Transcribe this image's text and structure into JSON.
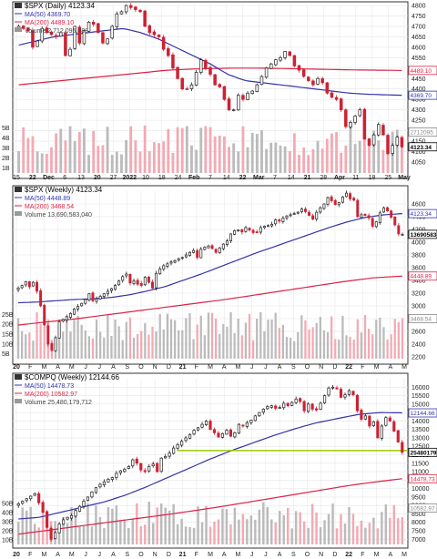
{
  "colors": {
    "up": "#222222",
    "down": "#cc2233",
    "ma50": "#3333aa",
    "ma200": "#dd2244",
    "support": "#99cc00",
    "vol": "#bbbbbb",
    "volDown": "#f2aab4",
    "frame": "#333333",
    "grid": "#e4e4e4"
  },
  "chart_data": [
    {
      "type": "line",
      "title_line": "$SPX (Daily) 4123.34",
      "legend": [
        {
          "label": "MA(50) 4369.70",
          "color": "#3333aa"
        },
        {
          "label": "MA(200) 4489.10",
          "color": "#dd2244"
        },
        {
          "label": "Volume 2,712,095,488",
          "color": "#999999"
        }
      ],
      "x_ticks": [
        "15",
        "22",
        "Dec",
        "6",
        "13",
        "20",
        "27",
        "2022",
        "10",
        "18",
        "24",
        "Feb",
        "7",
        "14",
        "22",
        "Mar",
        "7",
        "14",
        "21",
        "28",
        "Apr",
        "11",
        "18",
        "25",
        "May"
      ],
      "y_ticks": [
        "4800",
        "4750",
        "4700",
        "4650",
        "4600",
        "4550",
        "4500",
        "4450",
        "4400",
        "4350",
        "4300",
        "4250",
        "4200",
        "4150",
        "4100",
        "4050"
      ],
      "ylim": [
        4050,
        4800
      ],
      "vol_ticks": [
        "5B",
        "4B",
        "3B",
        "2B",
        "1B"
      ],
      "price_tags": [
        "4489.10",
        "4369.70",
        "2712095",
        "4123.34"
      ],
      "ohlc_close_approx": [
        4700,
        4690,
        4680,
        4600,
        4630,
        4690,
        4670,
        4660,
        4650,
        4670,
        4560,
        4590,
        4700,
        4620,
        4680,
        4720,
        4710,
        4670,
        4620,
        4640,
        4700,
        4760,
        4770,
        4800,
        4790,
        4780,
        4770,
        4700,
        4670,
        4660,
        4650,
        4590,
        4560,
        4500,
        4450,
        4400,
        4400,
        4420,
        4480,
        4540,
        4500,
        4470,
        4420,
        4410,
        4350,
        4300,
        4300,
        4370,
        4350,
        4380,
        4390,
        4420,
        4460,
        4500,
        4520,
        4540,
        4550,
        4580,
        4560,
        4510,
        4490,
        4460,
        4440,
        4420,
        4450,
        4430,
        4380,
        4360,
        4350,
        4300,
        4220,
        4240,
        4270,
        4300,
        4160,
        4130,
        4180,
        4230,
        4180,
        4090,
        4130,
        4170,
        4123
      ],
      "ma50_approx": [
        4610,
        4630,
        4650,
        4660,
        4670,
        4680,
        4690,
        4670,
        4640,
        4600,
        4560,
        4520,
        4470,
        4440,
        4430,
        4420,
        4410,
        4400,
        4390,
        4380,
        4375,
        4372,
        4370
      ],
      "ma200_approx": [
        4420,
        4430,
        4440,
        4450,
        4460,
        4470,
        4480,
        4490,
        4495,
        4498,
        4500,
        4500,
        4499,
        4497,
        4495,
        4493,
        4491,
        4490,
        4489
      ]
    },
    {
      "type": "line",
      "title_line": "$SPX (Weekly) 4123.34",
      "legend": [
        {
          "label": "MA(50) 4448.89",
          "color": "#3333aa"
        },
        {
          "label": "MA(200) 3468.54",
          "color": "#dd2244"
        },
        {
          "label": "Volume 13,690,583,040",
          "color": "#999999"
        }
      ],
      "x_ticks": [
        "20",
        "F",
        "M",
        "A",
        "M",
        "J",
        "J",
        "A",
        "S",
        "O",
        "N",
        "D",
        "21",
        "F",
        "M",
        "A",
        "M",
        "J",
        "J",
        "A",
        "S",
        "O",
        "N",
        "D",
        "22",
        "F",
        "M",
        "A",
        "M"
      ],
      "y_ticks": [
        "4600",
        "4400",
        "4200",
        "4000",
        "3800",
        "3600",
        "3400",
        "3200",
        "3000",
        "2800",
        "2600",
        "2400",
        "2200"
      ],
      "ylim": [
        2200,
        4800
      ],
      "vol_ticks": [
        "25B",
        "20B",
        "15B",
        "10B",
        "5B"
      ],
      "price_tags": [
        "4448.89",
        "4123.34",
        "3468.54",
        "13690583"
      ],
      "ohlc_close_approx": [
        3280,
        3320,
        3380,
        3300,
        3370,
        3230,
        3000,
        2700,
        2400,
        2300,
        2500,
        2750,
        2790,
        2830,
        2880,
        2950,
        2990,
        3040,
        3100,
        3190,
        3080,
        3110,
        3150,
        3190,
        3230,
        3270,
        3320,
        3390,
        3460,
        3500,
        3360,
        3390,
        3340,
        3320,
        3450,
        3370,
        3280,
        3510,
        3580,
        3630,
        3660,
        3690,
        3710,
        3740,
        3760,
        3800,
        3840,
        3870,
        3760,
        3890,
        3920,
        3940,
        3900,
        3840,
        3910,
        3970,
        4020,
        4130,
        4180,
        4190,
        4160,
        4230,
        4190,
        4150,
        4160,
        4230,
        4250,
        4260,
        4280,
        4350,
        4330,
        4380,
        4410,
        4430,
        4450,
        4470,
        4520,
        4480,
        4420,
        4360,
        4470,
        4540,
        4600,
        4700,
        4650,
        4590,
        4620,
        4710,
        4770,
        4680,
        4660,
        4400,
        4430,
        4420,
        4380,
        4250,
        4320,
        4460,
        4540,
        4490,
        4390,
        4270,
        4130,
        4123
      ],
      "ma50_approx": [
        3050,
        3060,
        3080,
        3100,
        3110,
        3130,
        3170,
        3230,
        3300,
        3400,
        3500,
        3610,
        3720,
        3830,
        3930,
        4030,
        4130,
        4230,
        4320,
        4390,
        4430,
        4448
      ],
      "ma200_approx": [
        2700,
        2750,
        2800,
        2860,
        2920,
        2980,
        3040,
        3100,
        3170,
        3240,
        3310,
        3380,
        3440,
        3468
      ]
    },
    {
      "type": "line",
      "title_line": "$COMPQ (Weekly) 12144.66",
      "legend": [
        {
          "label": "MA(50) 14478.73",
          "color": "#3333aa"
        },
        {
          "label": "MA(200) 10582.97",
          "color": "#dd2244"
        },
        {
          "label": "Volume 25,480,179,712",
          "color": "#999999"
        }
      ],
      "x_ticks": [
        "20",
        "F",
        "M",
        "A",
        "M",
        "J",
        "J",
        "A",
        "S",
        "O",
        "N",
        "D",
        "21",
        "F",
        "M",
        "A",
        "M",
        "J",
        "J",
        "A",
        "S",
        "O",
        "N",
        "D",
        "22",
        "F",
        "M",
        "A",
        "M"
      ],
      "y_ticks": [
        "16000",
        "15500",
        "15000",
        "14500",
        "14000",
        "13500",
        "13000",
        "12500",
        "12000",
        "11500",
        "11000",
        "10500",
        "10000",
        "9500",
        "9000",
        "8500",
        "8000",
        "7500",
        "7000"
      ],
      "ylim": [
        6800,
        16500
      ],
      "vol_ticks": [
        "50B",
        "40B",
        "30B",
        "20B",
        "10B"
      ],
      "price_tags": [
        "14478.73",
        "12144.66",
        "10582.97",
        "25480179"
      ],
      "ohlc_close_approx": [
        9100,
        9250,
        9400,
        9550,
        9700,
        9150,
        8600,
        7700,
        7000,
        7400,
        7900,
        8150,
        8300,
        8400,
        8700,
        8950,
        9250,
        9500,
        9800,
        10050,
        10250,
        10400,
        10550,
        10650,
        10900,
        11050,
        11150,
        11300,
        11700,
        11500,
        11100,
        11000,
        11300,
        11450,
        11000,
        11800,
        11900,
        12100,
        12400,
        12600,
        12800,
        13000,
        13200,
        13450,
        13600,
        13800,
        14000,
        13500,
        13300,
        13050,
        13250,
        13450,
        13100,
        13300,
        13800,
        13700,
        13900,
        14050,
        14300,
        14500,
        14700,
        14850,
        14900,
        14750,
        14800,
        15050,
        14900,
        15100,
        15300,
        15150,
        14600,
        15000,
        14700,
        14650,
        15050,
        15500,
        15950,
        16000,
        15900,
        15400,
        15550,
        15800,
        15550,
        14600,
        14100,
        14300,
        13700,
        13950,
        13000,
        13700,
        14200,
        14000,
        13400,
        12750,
        12144
      ],
      "ma50_approx": [
        8200,
        8300,
        8600,
        8900,
        9200,
        9600,
        10100,
        10650,
        11200,
        11750,
        12250,
        12700,
        13150,
        13550,
        13900,
        14150,
        14400,
        14500,
        14478
      ],
      "ma200_approx": [
        7300,
        7500,
        7700,
        7900,
        8100,
        8300,
        8500,
        8720,
        8950,
        9200,
        9450,
        9700,
        9950,
        10200,
        10400,
        10583
      ]
    }
  ]
}
